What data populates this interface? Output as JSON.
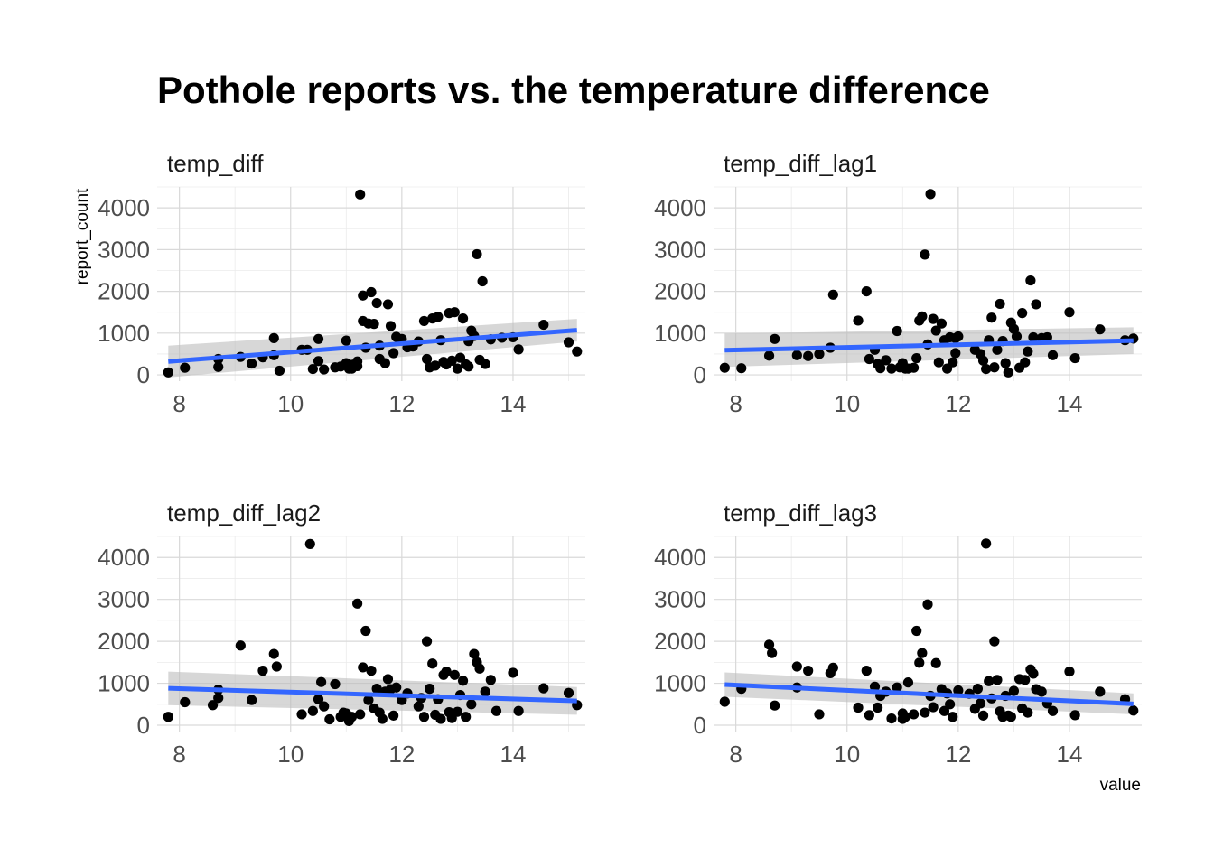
{
  "title": "Pothole reports vs. the temperature difference",
  "xlabel": "value",
  "ylabel": "report_count",
  "colors": {
    "point": "#000000",
    "fit_line": "#3366FF",
    "ribbon": "#bdbdbd"
  },
  "chart_data": {
    "type": "scatter",
    "facet_layout": "2x2",
    "shared_axes": {
      "xlim": [
        7.6,
        15.3
      ],
      "ylim": [
        -150,
        4500
      ],
      "x_ticks": [
        8,
        10,
        12,
        14
      ],
      "y_ticks": [
        0,
        1000,
        2000,
        3000,
        4000
      ],
      "grid": true
    },
    "facets": [
      {
        "name": "temp_diff",
        "smooth": {
          "method": "lm",
          "x": [
            7.8,
            15.15
          ],
          "y": [
            320,
            1070
          ],
          "se_low": [
            -60,
            800
          ],
          "se_high": [
            700,
            1340
          ]
        },
        "points": [
          [
            7.8,
            60
          ],
          [
            8.1,
            170
          ],
          [
            8.7,
            380
          ],
          [
            8.7,
            190
          ],
          [
            9.1,
            430
          ],
          [
            9.3,
            270
          ],
          [
            9.5,
            420
          ],
          [
            9.7,
            880
          ],
          [
            9.7,
            470
          ],
          [
            9.8,
            100
          ],
          [
            10.2,
            600
          ],
          [
            10.3,
            600
          ],
          [
            10.4,
            140
          ],
          [
            10.5,
            330
          ],
          [
            10.5,
            860
          ],
          [
            10.6,
            130
          ],
          [
            10.8,
            180
          ],
          [
            10.9,
            200
          ],
          [
            11.0,
            820
          ],
          [
            11.0,
            280
          ],
          [
            11.1,
            150
          ],
          [
            11.2,
            210
          ],
          [
            11.2,
            320
          ],
          [
            11.25,
            4320
          ],
          [
            11.3,
            1900
          ],
          [
            11.3,
            1290
          ],
          [
            11.35,
            650
          ],
          [
            11.4,
            1230
          ],
          [
            11.45,
            1980
          ],
          [
            11.5,
            1220
          ],
          [
            11.55,
            1720
          ],
          [
            11.6,
            700
          ],
          [
            11.6,
            380
          ],
          [
            11.7,
            280
          ],
          [
            11.75,
            1690
          ],
          [
            11.8,
            1170
          ],
          [
            11.85,
            520
          ],
          [
            11.9,
            910
          ],
          [
            12.0,
            860
          ],
          [
            12.1,
            660
          ],
          [
            12.3,
            800
          ],
          [
            12.4,
            1290
          ],
          [
            12.45,
            380
          ],
          [
            12.5,
            180
          ],
          [
            12.55,
            1350
          ],
          [
            12.6,
            220
          ],
          [
            12.65,
            1390
          ],
          [
            12.7,
            830
          ],
          [
            12.75,
            310
          ],
          [
            12.8,
            250
          ],
          [
            12.85,
            1480
          ],
          [
            12.9,
            340
          ],
          [
            12.95,
            1500
          ],
          [
            13.0,
            150
          ],
          [
            13.05,
            410
          ],
          [
            13.1,
            1350
          ],
          [
            13.15,
            250
          ],
          [
            13.2,
            810
          ],
          [
            13.25,
            1060
          ],
          [
            13.3,
            930
          ],
          [
            13.35,
            2890
          ],
          [
            13.4,
            360
          ],
          [
            13.45,
            2240
          ],
          [
            13.5,
            260
          ],
          [
            13.6,
            850
          ],
          [
            13.8,
            890
          ],
          [
            14.0,
            900
          ],
          [
            14.1,
            610
          ],
          [
            14.55,
            1200
          ],
          [
            15.0,
            780
          ],
          [
            15.15,
            560
          ],
          [
            11.05,
            150
          ],
          [
            11.1,
            240
          ],
          [
            12.2,
            680
          ],
          [
            13.2,
            200
          ]
        ]
      },
      {
        "name": "temp_diff_lag1",
        "smooth": {
          "method": "lm",
          "x": [
            7.8,
            15.15
          ],
          "y": [
            590,
            820
          ],
          "se_low": [
            190,
            500
          ],
          "se_high": [
            990,
            1140
          ]
        },
        "points": [
          [
            7.8,
            170
          ],
          [
            8.1,
            160
          ],
          [
            8.6,
            460
          ],
          [
            8.7,
            860
          ],
          [
            9.1,
            470
          ],
          [
            9.3,
            450
          ],
          [
            9.5,
            500
          ],
          [
            9.7,
            650
          ],
          [
            9.75,
            1920
          ],
          [
            10.2,
            1300
          ],
          [
            10.35,
            2000
          ],
          [
            10.4,
            380
          ],
          [
            10.5,
            600
          ],
          [
            10.55,
            260
          ],
          [
            10.6,
            160
          ],
          [
            10.7,
            350
          ],
          [
            10.8,
            150
          ],
          [
            10.9,
            1050
          ],
          [
            11.0,
            280
          ],
          [
            11.05,
            150
          ],
          [
            11.1,
            150
          ],
          [
            11.2,
            170
          ],
          [
            11.25,
            400
          ],
          [
            11.3,
            1300
          ],
          [
            11.35,
            1400
          ],
          [
            11.4,
            2880
          ],
          [
            11.45,
            730
          ],
          [
            11.5,
            4330
          ],
          [
            11.55,
            1340
          ],
          [
            11.6,
            1060
          ],
          [
            11.65,
            300
          ],
          [
            11.7,
            1230
          ],
          [
            11.75,
            830
          ],
          [
            11.8,
            150
          ],
          [
            11.85,
            900
          ],
          [
            11.9,
            300
          ],
          [
            11.95,
            880
          ],
          [
            12.0,
            920
          ],
          [
            12.3,
            600
          ],
          [
            12.4,
            500
          ],
          [
            12.45,
            340
          ],
          [
            12.5,
            140
          ],
          [
            12.55,
            830
          ],
          [
            12.6,
            1370
          ],
          [
            12.65,
            180
          ],
          [
            12.7,
            600
          ],
          [
            12.75,
            1700
          ],
          [
            12.8,
            810
          ],
          [
            12.85,
            280
          ],
          [
            12.9,
            60
          ],
          [
            12.95,
            1250
          ],
          [
            13.0,
            1100
          ],
          [
            13.05,
            920
          ],
          [
            13.1,
            170
          ],
          [
            13.15,
            1480
          ],
          [
            13.2,
            300
          ],
          [
            13.25,
            560
          ],
          [
            13.3,
            2260
          ],
          [
            13.35,
            900
          ],
          [
            13.4,
            1690
          ],
          [
            13.5,
            880
          ],
          [
            13.6,
            900
          ],
          [
            13.7,
            470
          ],
          [
            14.0,
            1500
          ],
          [
            14.1,
            400
          ],
          [
            14.55,
            1090
          ],
          [
            15.0,
            830
          ],
          [
            15.15,
            870
          ],
          [
            10.95,
            180
          ],
          [
            11.95,
            520
          ]
        ]
      },
      {
        "name": "temp_diff_lag2",
        "smooth": {
          "method": "lm",
          "x": [
            7.8,
            15.15
          ],
          "y": [
            880,
            580
          ],
          "se_low": [
            480,
            250
          ],
          "se_high": [
            1280,
            910
          ]
        },
        "points": [
          [
            7.8,
            200
          ],
          [
            8.1,
            550
          ],
          [
            8.6,
            480
          ],
          [
            8.7,
            850
          ],
          [
            8.7,
            650
          ],
          [
            9.1,
            1900
          ],
          [
            9.3,
            600
          ],
          [
            9.5,
            1300
          ],
          [
            9.7,
            1700
          ],
          [
            9.75,
            1400
          ],
          [
            10.2,
            260
          ],
          [
            10.35,
            4320
          ],
          [
            10.4,
            340
          ],
          [
            10.5,
            620
          ],
          [
            10.55,
            1030
          ],
          [
            10.6,
            450
          ],
          [
            10.7,
            140
          ],
          [
            10.8,
            980
          ],
          [
            10.9,
            200
          ],
          [
            11.0,
            280
          ],
          [
            11.05,
            100
          ],
          [
            11.1,
            200
          ],
          [
            11.2,
            2900
          ],
          [
            11.25,
            260
          ],
          [
            11.3,
            1380
          ],
          [
            11.35,
            2250
          ],
          [
            11.4,
            600
          ],
          [
            11.45,
            1300
          ],
          [
            11.5,
            400
          ],
          [
            11.55,
            870
          ],
          [
            11.6,
            300
          ],
          [
            11.65,
            150
          ],
          [
            11.7,
            800
          ],
          [
            11.75,
            1100
          ],
          [
            11.8,
            860
          ],
          [
            11.85,
            230
          ],
          [
            11.9,
            900
          ],
          [
            12.0,
            600
          ],
          [
            12.3,
            450
          ],
          [
            12.35,
            650
          ],
          [
            12.4,
            200
          ],
          [
            12.45,
            2000
          ],
          [
            12.5,
            870
          ],
          [
            12.55,
            1470
          ],
          [
            12.6,
            250
          ],
          [
            12.65,
            620
          ],
          [
            12.7,
            150
          ],
          [
            12.75,
            1200
          ],
          [
            12.8,
            1280
          ],
          [
            12.85,
            310
          ],
          [
            12.9,
            170
          ],
          [
            12.95,
            1200
          ],
          [
            13.0,
            320
          ],
          [
            13.05,
            720
          ],
          [
            13.1,
            1060
          ],
          [
            13.15,
            200
          ],
          [
            13.25,
            500
          ],
          [
            13.3,
            1700
          ],
          [
            13.35,
            1500
          ],
          [
            13.4,
            1350
          ],
          [
            13.5,
            800
          ],
          [
            13.6,
            1080
          ],
          [
            13.7,
            340
          ],
          [
            14.0,
            1250
          ],
          [
            14.1,
            340
          ],
          [
            14.55,
            880
          ],
          [
            15.0,
            770
          ],
          [
            15.15,
            480
          ],
          [
            10.95,
            300
          ],
          [
            12.1,
            760
          ]
        ]
      },
      {
        "name": "temp_diff_lag3",
        "smooth": {
          "method": "lm",
          "x": [
            7.8,
            15.15
          ],
          "y": [
            970,
            510
          ],
          "se_low": [
            680,
            260
          ],
          "se_high": [
            1260,
            760
          ]
        },
        "points": [
          [
            7.8,
            560
          ],
          [
            8.1,
            870
          ],
          [
            8.6,
            1920
          ],
          [
            8.65,
            1720
          ],
          [
            8.7,
            470
          ],
          [
            9.1,
            1400
          ],
          [
            9.1,
            900
          ],
          [
            9.3,
            1300
          ],
          [
            9.5,
            260
          ],
          [
            9.7,
            1240
          ],
          [
            9.75,
            1370
          ],
          [
            10.2,
            420
          ],
          [
            10.35,
            1300
          ],
          [
            10.4,
            240
          ],
          [
            10.5,
            920
          ],
          [
            10.55,
            420
          ],
          [
            10.6,
            700
          ],
          [
            10.7,
            800
          ],
          [
            10.8,
            160
          ],
          [
            10.9,
            900
          ],
          [
            11.0,
            280
          ],
          [
            11.05,
            200
          ],
          [
            11.1,
            1020
          ],
          [
            11.2,
            260
          ],
          [
            11.25,
            2250
          ],
          [
            11.3,
            1490
          ],
          [
            11.35,
            1720
          ],
          [
            11.4,
            300
          ],
          [
            11.45,
            2880
          ],
          [
            11.5,
            700
          ],
          [
            11.55,
            430
          ],
          [
            11.6,
            1480
          ],
          [
            11.7,
            860
          ],
          [
            11.75,
            340
          ],
          [
            11.8,
            760
          ],
          [
            11.85,
            500
          ],
          [
            11.9,
            200
          ],
          [
            12.0,
            830
          ],
          [
            12.3,
            390
          ],
          [
            12.35,
            870
          ],
          [
            12.4,
            520
          ],
          [
            12.45,
            230
          ],
          [
            12.5,
            4330
          ],
          [
            12.55,
            1050
          ],
          [
            12.6,
            640
          ],
          [
            12.65,
            2000
          ],
          [
            12.7,
            1080
          ],
          [
            12.75,
            330
          ],
          [
            12.8,
            200
          ],
          [
            12.85,
            700
          ],
          [
            12.9,
            230
          ],
          [
            12.95,
            200
          ],
          [
            13.0,
            820
          ],
          [
            13.1,
            1100
          ],
          [
            13.15,
            400
          ],
          [
            13.2,
            1080
          ],
          [
            13.3,
            1330
          ],
          [
            13.35,
            1230
          ],
          [
            13.4,
            860
          ],
          [
            13.5,
            800
          ],
          [
            13.6,
            520
          ],
          [
            13.7,
            340
          ],
          [
            14.0,
            1280
          ],
          [
            14.1,
            240
          ],
          [
            14.55,
            800
          ],
          [
            15.0,
            620
          ],
          [
            15.15,
            350
          ],
          [
            11.0,
            150
          ],
          [
            12.2,
            750
          ],
          [
            13.25,
            300
          ]
        ]
      }
    ]
  }
}
